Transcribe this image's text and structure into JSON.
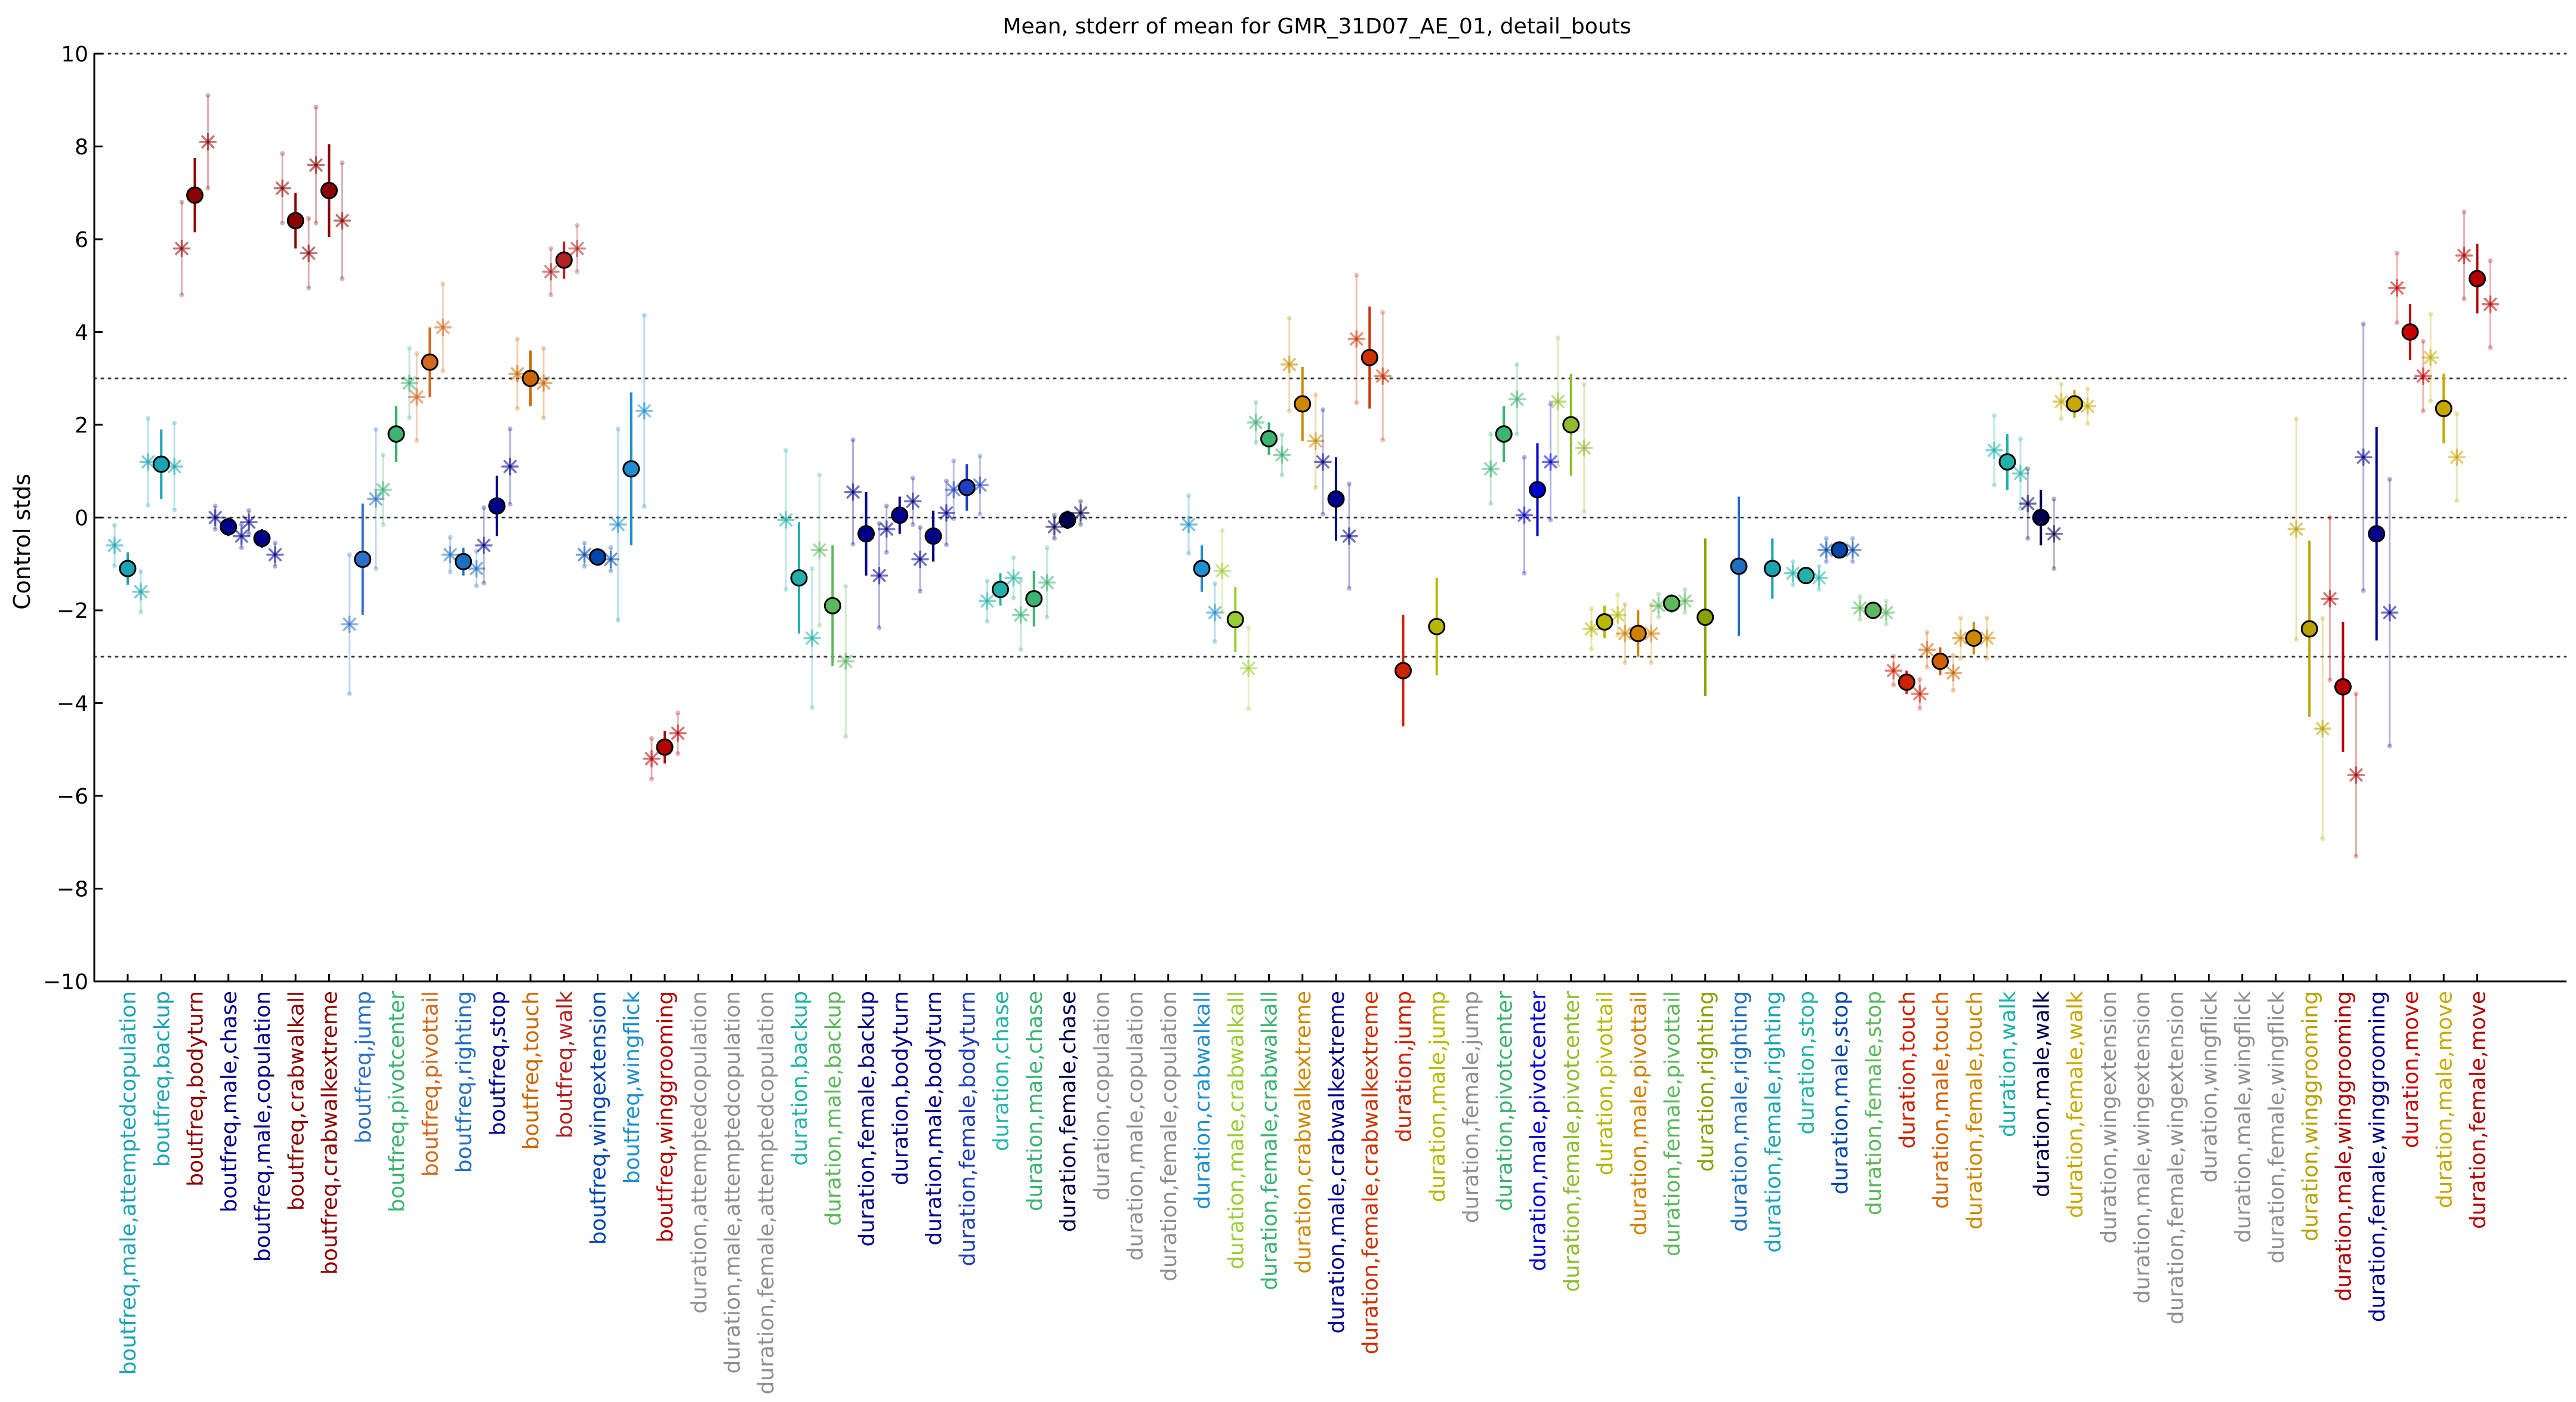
{
  "chart_data": {
    "type": "scatter",
    "title": "Mean, stderr of mean for GMR_31D07_AE_01, detail_bouts",
    "ylabel": "Control stds",
    "xlabel": "",
    "ylim": [
      -10,
      10
    ],
    "yticks": [
      -10,
      -8,
      -6,
      -4,
      -2,
      0,
      2,
      4,
      6,
      8,
      10
    ],
    "reference_lines": [
      -3,
      0,
      3,
      10,
      -10
    ],
    "categories": [
      {
        "label": "boutfreq,male,attemptedcopulation",
        "mean": -1.1,
        "err": 0.35,
        "color": "#1aa3b3",
        "sub": [
          -0.6,
          -1.6
        ]
      },
      {
        "label": "boutfreq,backup",
        "mean": 1.15,
        "err": 0.75,
        "color": "#1aa3b3",
        "sub": [
          1.2,
          1.1
        ]
      },
      {
        "label": "boutfreq,bodyturn",
        "mean": 6.95,
        "err": 0.8,
        "color": "#8b0000",
        "sub": [
          5.8,
          8.1
        ]
      },
      {
        "label": "boutfreq,male,chase",
        "mean": -0.2,
        "err": 0.2,
        "color": "#00008b",
        "sub": [
          0.0,
          -0.4
        ]
      },
      {
        "label": "boutfreq,male,copulation",
        "mean": -0.45,
        "err": 0.2,
        "color": "#00008b",
        "sub": [
          -0.1,
          -0.8
        ]
      },
      {
        "label": "boutfreq,crabwalkall",
        "mean": 6.4,
        "err": 0.6,
        "color": "#8b0000",
        "sub": [
          7.1,
          5.7
        ]
      },
      {
        "label": "boutfreq,crabwalkextreme",
        "mean": 7.05,
        "err": 1.0,
        "color": "#8b0000",
        "sub": [
          7.6,
          6.4
        ]
      },
      {
        "label": "boutfreq,jump",
        "mean": -0.9,
        "err": 1.2,
        "color": "#2a6fc9",
        "sub": [
          -2.3,
          0.4
        ]
      },
      {
        "label": "boutfreq,pivotcenter",
        "mean": 1.8,
        "err": 0.6,
        "color": "#3cb371",
        "sub": [
          0.6,
          2.9
        ]
      },
      {
        "label": "boutfreq,pivottail",
        "mean": 3.35,
        "err": 0.75,
        "color": "#d2691e",
        "sub": [
          2.6,
          4.1
        ]
      },
      {
        "label": "boutfreq,righting",
        "mean": -0.95,
        "err": 0.3,
        "color": "#1f6fbf",
        "sub": [
          -0.8,
          -1.1
        ]
      },
      {
        "label": "boutfreq,stop",
        "mean": 0.25,
        "err": 0.65,
        "color": "#00008b",
        "sub": [
          -0.6,
          1.1
        ]
      },
      {
        "label": "boutfreq,touch",
        "mean": 3.0,
        "err": 0.6,
        "color": "#cc6600",
        "sub": [
          3.1,
          2.9
        ]
      },
      {
        "label": "boutfreq,walk",
        "mean": 5.55,
        "err": 0.4,
        "color": "#b22222",
        "sub": [
          5.3,
          5.8
        ]
      },
      {
        "label": "boutfreq,wingextension",
        "mean": -0.85,
        "err": 0.15,
        "color": "#0047ab",
        "sub": [
          -0.8,
          -0.9
        ]
      },
      {
        "label": "boutfreq,wingflick",
        "mean": 1.05,
        "err": 1.65,
        "color": "#1f8fcf",
        "sub": [
          -0.15,
          2.3
        ]
      },
      {
        "label": "boutfreq,winggrooming",
        "mean": -4.95,
        "err": 0.35,
        "color": "#b00000",
        "sub": [
          -5.2,
          -4.65
        ]
      },
      {
        "label": "duration,attemptedcopulation",
        "mean": null,
        "err": 0,
        "color": "#909090",
        "sub": []
      },
      {
        "label": "duration,male,attemptedcopulation",
        "mean": null,
        "err": 0,
        "color": "#909090",
        "sub": []
      },
      {
        "label": "duration,female,attemptedcopulation",
        "mean": null,
        "err": 0,
        "color": "#909090",
        "sub": []
      },
      {
        "label": "duration,backup",
        "mean": -1.3,
        "err": 1.2,
        "color": "#20b2aa",
        "sub": [
          -0.05,
          -2.6
        ]
      },
      {
        "label": "duration,male,backup",
        "mean": -1.9,
        "err": 1.3,
        "color": "#5cb85c",
        "sub": [
          -0.7,
          -3.1
        ]
      },
      {
        "label": "duration,female,backup",
        "mean": -0.35,
        "err": 0.9,
        "color": "#00008b",
        "sub": [
          0.55,
          -1.25
        ]
      },
      {
        "label": "duration,bodyturn",
        "mean": 0.05,
        "err": 0.4,
        "color": "#00008b",
        "sub": [
          -0.25,
          0.35
        ]
      },
      {
        "label": "duration,male,bodyturn",
        "mean": -0.4,
        "err": 0.55,
        "color": "#00008b",
        "sub": [
          -0.9,
          0.1
        ]
      },
      {
        "label": "duration,female,bodyturn",
        "mean": 0.65,
        "err": 0.5,
        "color": "#1f3fbf",
        "sub": [
          0.6,
          0.7
        ]
      },
      {
        "label": "duration,chase",
        "mean": -1.55,
        "err": 0.35,
        "color": "#20b2aa",
        "sub": [
          -1.8,
          -1.3
        ]
      },
      {
        "label": "duration,male,chase",
        "mean": -1.75,
        "err": 0.6,
        "color": "#3cb371",
        "sub": [
          -2.1,
          -1.4
        ]
      },
      {
        "label": "duration,female,chase",
        "mean": -0.05,
        "err": 0.2,
        "color": "#00004d",
        "sub": [
          -0.2,
          0.1
        ]
      },
      {
        "label": "duration,copulation",
        "mean": null,
        "err": 0,
        "color": "#909090",
        "sub": []
      },
      {
        "label": "duration,male,copulation",
        "mean": null,
        "err": 0,
        "color": "#909090",
        "sub": []
      },
      {
        "label": "duration,female,copulation",
        "mean": null,
        "err": 0,
        "color": "#909090",
        "sub": []
      },
      {
        "label": "duration,crabwalkall",
        "mean": -1.1,
        "err": 0.5,
        "color": "#1f8fcf",
        "sub": [
          -0.15,
          -2.05
        ]
      },
      {
        "label": "duration,male,crabwalkall",
        "mean": -2.2,
        "err": 0.7,
        "color": "#9acd32",
        "sub": [
          -1.15,
          -3.25
        ]
      },
      {
        "label": "duration,female,crabwalkall",
        "mean": 1.7,
        "err": 0.35,
        "color": "#3cb371",
        "sub": [
          2.05,
          1.35
        ]
      },
      {
        "label": "duration,crabwalkextreme",
        "mean": 2.45,
        "err": 0.8,
        "color": "#cc8800",
        "sub": [
          3.3,
          1.65
        ]
      },
      {
        "label": "duration,male,crabwalkextreme",
        "mean": 0.4,
        "err": 0.9,
        "color": "#00008b",
        "sub": [
          1.2,
          -0.4
        ]
      },
      {
        "label": "duration,female,crabwalkextreme",
        "mean": 3.45,
        "err": 1.1,
        "color": "#cc3300",
        "sub": [
          3.85,
          3.05
        ]
      },
      {
        "label": "duration,jump",
        "mean": -3.3,
        "err": 1.2,
        "color": "#cc2200",
        "sub": []
      },
      {
        "label": "duration,male,jump",
        "mean": -2.35,
        "err": 1.05,
        "color": "#b8b800",
        "sub": []
      },
      {
        "label": "duration,female,jump",
        "mean": null,
        "err": 0,
        "color": "#909090",
        "sub": []
      },
      {
        "label": "duration,pivotcenter",
        "mean": 1.8,
        "err": 0.6,
        "color": "#3cb371",
        "sub": [
          1.05,
          2.55
        ]
      },
      {
        "label": "duration,male,pivotcenter",
        "mean": 0.6,
        "err": 1.0,
        "color": "#0000cd",
        "sub": [
          0.05,
          1.2
        ]
      },
      {
        "label": "duration,female,pivotcenter",
        "mean": 2.0,
        "err": 1.1,
        "color": "#8fbc2f",
        "sub": [
          2.5,
          1.5
        ]
      },
      {
        "label": "duration,pivottail",
        "mean": -2.25,
        "err": 0.35,
        "color": "#b8b800",
        "sub": [
          -2.4,
          -2.1
        ]
      },
      {
        "label": "duration,male,pivottail",
        "mean": -2.5,
        "err": 0.5,
        "color": "#d08000",
        "sub": [
          -2.5,
          -2.5
        ]
      },
      {
        "label": "duration,female,pivottail",
        "mean": -1.85,
        "err": 0.2,
        "color": "#5cb85c",
        "sub": [
          -1.9,
          -1.8
        ]
      },
      {
        "label": "duration,righting",
        "mean": -2.15,
        "err": 1.7,
        "color": "#8aa000",
        "sub": []
      },
      {
        "label": "duration,male,righting",
        "mean": -1.05,
        "err": 1.5,
        "color": "#1f6fbf",
        "sub": []
      },
      {
        "label": "duration,female,righting",
        "mean": -1.1,
        "err": 0.65,
        "color": "#1aa3b3",
        "sub": []
      },
      {
        "label": "duration,stop",
        "mean": -1.25,
        "err": 0.1,
        "color": "#20b2aa",
        "sub": [
          -1.2,
          -1.3
        ]
      },
      {
        "label": "duration,male,stop",
        "mean": -0.7,
        "err": 0.15,
        "color": "#0047ab",
        "sub": [
          -0.7,
          -0.7
        ]
      },
      {
        "label": "duration,female,stop",
        "mean": -2.0,
        "err": 0.15,
        "color": "#5cb85c",
        "sub": [
          -1.95,
          -2.05
        ]
      },
      {
        "label": "duration,touch",
        "mean": -3.55,
        "err": 0.25,
        "color": "#cc2200",
        "sub": [
          -3.3,
          -3.8
        ]
      },
      {
        "label": "duration,male,touch",
        "mean": -3.1,
        "err": 0.3,
        "color": "#d06000",
        "sub": [
          -2.85,
          -3.35
        ]
      },
      {
        "label": "duration,female,touch",
        "mean": -2.6,
        "err": 0.35,
        "color": "#cc8800",
        "sub": [
          -2.6,
          -2.6
        ]
      },
      {
        "label": "duration,walk",
        "mean": 1.2,
        "err": 0.6,
        "color": "#20b2aa",
        "sub": [
          1.45,
          0.95
        ]
      },
      {
        "label": "duration,male,walk",
        "mean": 0.0,
        "err": 0.6,
        "color": "#00004d",
        "sub": [
          0.3,
          -0.35
        ]
      },
      {
        "label": "duration,female,walk",
        "mean": 2.45,
        "err": 0.3,
        "color": "#c8a800",
        "sub": [
          2.5,
          2.4
        ]
      },
      {
        "label": "duration,wingextension",
        "mean": null,
        "err": 0,
        "color": "#909090",
        "sub": []
      },
      {
        "label": "duration,male,wingextension",
        "mean": null,
        "err": 0,
        "color": "#909090",
        "sub": []
      },
      {
        "label": "duration,female,wingextension",
        "mean": null,
        "err": 0,
        "color": "#909090",
        "sub": []
      },
      {
        "label": "duration,wingflick",
        "mean": null,
        "err": 0,
        "color": "#909090",
        "sub": []
      },
      {
        "label": "duration,male,wingflick",
        "mean": null,
        "err": 0,
        "color": "#909090",
        "sub": []
      },
      {
        "label": "duration,female,wingflick",
        "mean": null,
        "err": 0,
        "color": "#909090",
        "sub": []
      },
      {
        "label": "duration,winggrooming",
        "mean": -2.4,
        "err": 1.9,
        "color": "#b8a000",
        "sub": [
          -0.25,
          -4.55
        ]
      },
      {
        "label": "duration,male,winggrooming",
        "mean": -3.65,
        "err": 1.4,
        "color": "#b00000",
        "sub": [
          -1.75,
          -5.55
        ]
      },
      {
        "label": "duration,female,winggrooming",
        "mean": -0.35,
        "err": 2.3,
        "color": "#00008b",
        "sub": [
          1.3,
          -2.05
        ]
      },
      {
        "label": "duration,move",
        "mean": 4.0,
        "err": 0.6,
        "color": "#cc0000",
        "sub": [
          4.95,
          3.05
        ]
      },
      {
        "label": "duration,male,move",
        "mean": 2.35,
        "err": 0.75,
        "color": "#c8a800",
        "sub": [
          3.45,
          1.3
        ]
      },
      {
        "label": "duration,female,move",
        "mean": 5.15,
        "err": 0.75,
        "color": "#b00000",
        "sub": [
          5.65,
          4.6
        ]
      }
    ]
  }
}
